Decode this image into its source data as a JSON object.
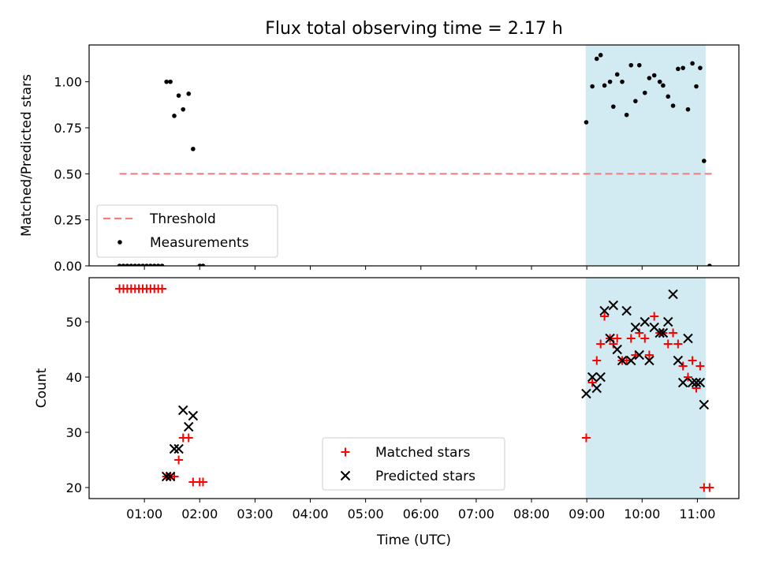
{
  "chart_data": {
    "title": "Flux total observing time = 2.17 h",
    "xlabel": "Time (UTC)",
    "x_units": "hours UTC",
    "xlim": [
      0.0,
      11.75
    ],
    "x_ticks": [
      {
        "value": 1,
        "label": "01:00"
      },
      {
        "value": 2,
        "label": "02:00"
      },
      {
        "value": 3,
        "label": "03:00"
      },
      {
        "value": 4,
        "label": "04:00"
      },
      {
        "value": 5,
        "label": "05:00"
      },
      {
        "value": 6,
        "label": "06:00"
      },
      {
        "value": 7,
        "label": "07:00"
      },
      {
        "value": 8,
        "label": "08:00"
      },
      {
        "value": 9,
        "label": "09:00"
      },
      {
        "value": 10,
        "label": "10:00"
      },
      {
        "value": 11,
        "label": "11:00"
      }
    ],
    "shaded_interval": {
      "x0": 8.98,
      "x1": 11.15,
      "color": "#add8e6"
    },
    "panels": [
      {
        "type": "scatter",
        "ylabel": "Matched/Predicted stars",
        "ylim": [
          0,
          1.2
        ],
        "y_ticks": [
          {
            "value": 0.0,
            "label": "0.00"
          },
          {
            "value": 0.25,
            "label": "0.25"
          },
          {
            "value": 0.5,
            "label": "0.50"
          },
          {
            "value": 0.75,
            "label": "0.75"
          },
          {
            "value": 1.0,
            "label": "1.00"
          }
        ],
        "legend": {
          "position": "lower left",
          "labels": [
            "Threshold",
            "Measurements"
          ]
        },
        "threshold": {
          "name": "Threshold",
          "y": 0.5,
          "x0": 0.55,
          "x1": 11.3,
          "color": "#f08080"
        },
        "measurements": {
          "name": "Measurements",
          "color": "#000000",
          "x": [
            0.55,
            0.62,
            0.69,
            0.76,
            0.83,
            0.9,
            0.97,
            1.04,
            1.11,
            1.18,
            1.25,
            1.32,
            1.4,
            1.47,
            1.54,
            1.62,
            1.7,
            1.8,
            1.88,
            2.0,
            2.06,
            8.99,
            9.1,
            9.18,
            9.25,
            9.32,
            9.42,
            9.48,
            9.55,
            9.64,
            9.72,
            9.8,
            9.88,
            9.95,
            10.05,
            10.13,
            10.22,
            10.32,
            10.38,
            10.47,
            10.56,
            10.65,
            10.74,
            10.83,
            10.91,
            10.98,
            11.05,
            11.12,
            11.22
          ],
          "y": [
            0,
            0,
            0,
            0,
            0,
            0,
            0,
            0,
            0,
            0,
            0,
            0,
            1.0,
            1.0,
            0.815,
            0.925,
            0.85,
            0.935,
            0.635,
            0,
            0,
            0.78,
            0.975,
            1.125,
            1.145,
            0.98,
            1.0,
            0.865,
            1.04,
            1.0,
            0.82,
            1.09,
            0.895,
            1.09,
            0.94,
            1.02,
            1.035,
            1.0,
            0.98,
            0.92,
            0.87,
            1.07,
            1.075,
            0.85,
            1.1,
            0.975,
            1.075,
            0.57,
            0
          ]
        }
      },
      {
        "type": "scatter",
        "ylabel": "Count",
        "ylim": [
          18,
          58
        ],
        "y_ticks": [
          {
            "value": 20,
            "label": "20"
          },
          {
            "value": 30,
            "label": "30"
          },
          {
            "value": 40,
            "label": "40"
          },
          {
            "value": 50,
            "label": "50"
          }
        ],
        "legend": {
          "position": "lower center",
          "labels": [
            "Matched stars",
            "Predicted stars"
          ]
        },
        "series": [
          {
            "name": "Matched stars",
            "marker": "+",
            "color": "#ff0000",
            "x": [
              0.55,
              0.62,
              0.69,
              0.76,
              0.83,
              0.9,
              0.97,
              1.04,
              1.11,
              1.18,
              1.25,
              1.32,
              1.4,
              1.47,
              1.54,
              1.62,
              1.7,
              1.8,
              1.88,
              2.0,
              2.06,
              8.99,
              9.1,
              9.18,
              9.25,
              9.32,
              9.42,
              9.48,
              9.55,
              9.64,
              9.72,
              9.8,
              9.88,
              9.95,
              10.05,
              10.13,
              10.22,
              10.32,
              10.38,
              10.47,
              10.56,
              10.65,
              10.74,
              10.83,
              10.91,
              10.98,
              11.05,
              11.12,
              11.22
            ],
            "y": [
              56,
              56,
              56,
              56,
              56,
              56,
              56,
              56,
              56,
              56,
              56,
              56,
              22,
              22,
              22,
              25,
              29,
              29,
              21,
              21,
              21,
              29,
              39,
              43,
              46,
              51,
              47,
              46,
              47,
              43,
              43,
              47,
              44,
              48,
              47,
              44,
              51,
              48,
              48,
              46,
              48,
              46,
              42,
              40,
              43,
              38,
              42,
              20,
              20
            ]
          },
          {
            "name": "Predicted stars",
            "marker": "x",
            "color": "#000000",
            "x": [
              1.4,
              1.47,
              1.54,
              1.62,
              1.7,
              1.8,
              1.88,
              8.99,
              9.1,
              9.18,
              9.25,
              9.32,
              9.42,
              9.48,
              9.55,
              9.64,
              9.72,
              9.8,
              9.88,
              9.95,
              10.05,
              10.13,
              10.22,
              10.32,
              10.38,
              10.47,
              10.56,
              10.65,
              10.74,
              10.83,
              10.91,
              10.98,
              11.05,
              11.12
            ],
            "y": [
              22,
              22,
              27,
              27,
              34,
              31,
              33,
              37,
              40,
              38,
              40,
              52,
              47,
              53,
              45,
              43,
              52,
              43,
              49,
              44,
              50,
              43,
              49,
              48,
              48,
              50,
              55,
              43,
              39,
              47,
              39,
              39,
              39,
              35
            ]
          }
        ]
      }
    ]
  }
}
